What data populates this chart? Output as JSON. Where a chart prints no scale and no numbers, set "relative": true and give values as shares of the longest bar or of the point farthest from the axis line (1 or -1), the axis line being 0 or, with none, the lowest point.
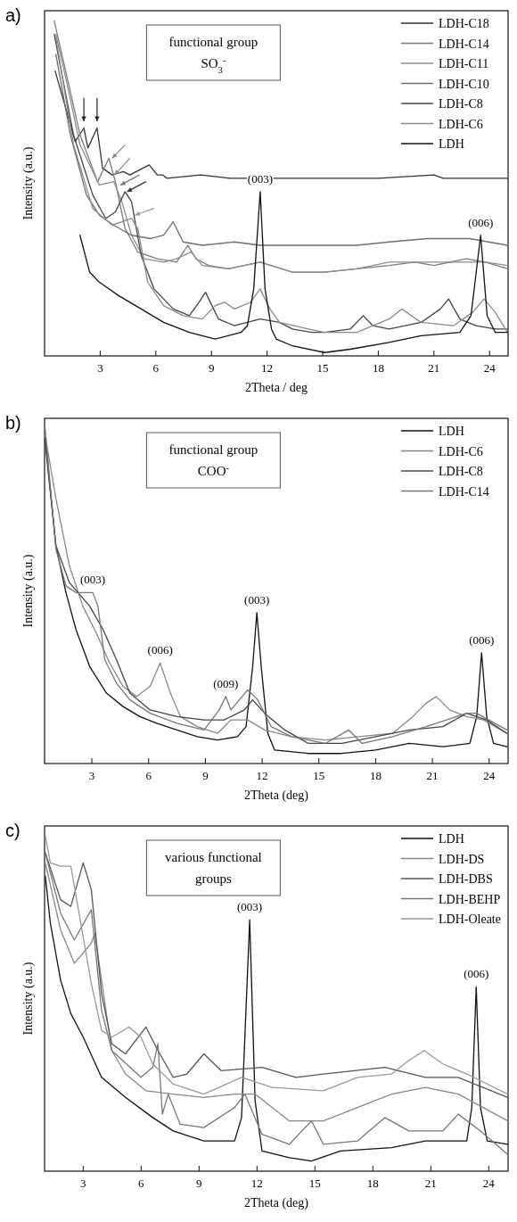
{
  "chart_data": [
    {
      "type": "line",
      "title": "a)",
      "xlabel": "2Theta / deg",
      "ylabel": "Intensity (a.u.)",
      "relative": true,
      "legend": "top right",
      "xlim": [
        0,
        25
      ],
      "xticks": [
        3,
        6,
        9,
        12,
        15,
        18,
        21,
        24
      ],
      "annotations": [
        "functional group",
        "SO$_{3}$$^{-}$",
        {
          "text": "(003)",
          "x": 11.63,
          "y": 0.49
        },
        {
          "text": "(006)",
          "x": 23.52,
          "y": 0.36
        }
      ],
      "series": [
        {
          "name": "LDH-C18",
          "color": "#333333",
          "x": [
            0.57,
            1.65,
            2.12,
            2.34,
            2.83,
            3.13,
            3.65,
            4.25,
            4.6,
            5.64,
            6.08,
            6.37,
            6.6,
            8.42,
            10,
            14,
            18,
            21,
            21.5,
            25
          ],
          "values": [
            0.85,
            0.64,
            0.68,
            0.62,
            0.68,
            0.56,
            0.54,
            0.55,
            0.54,
            0.57,
            0.54,
            0.54,
            0.53,
            0.54,
            0.53,
            0.53,
            0.53,
            0.54,
            0.53,
            0.53
          ]
        },
        {
          "name": "LDH-C14",
          "color": "#7a7a7a",
          "x": [
            0.52,
            1.22,
            1.91,
            2.86,
            3.47,
            3.82,
            4.34,
            5.03,
            6.08,
            7.12,
            7.73,
            8.16,
            8.85,
            9.9,
            11.63,
            13.37,
            15.1,
            16.84,
            18.58,
            19.97,
            21,
            22.74,
            23.78,
            24.97
          ],
          "values": [
            1,
            0.83,
            0.66,
            0.52,
            0.59,
            0.52,
            0.38,
            0.31,
            0.29,
            0.28,
            0.33,
            0.29,
            0.27,
            0.26,
            0.28,
            0.25,
            0.25,
            0.26,
            0.27,
            0.28,
            0.27,
            0.29,
            0.28,
            0.26
          ]
        },
        {
          "name": "LDH-C11",
          "color": "#8c8c8c",
          "x": [
            0.61,
            1.22,
            1.91,
            2.95,
            3.73,
            4.17,
            4.69,
            5.38,
            6.42,
            7.12,
            7.9,
            8.51,
            9.9,
            11.63,
            13.37,
            15.1,
            16.84,
            18.58,
            19.97,
            21.18,
            22.74,
            23.78,
            24.97
          ],
          "values": [
            0.96,
            0.81,
            0.63,
            0.51,
            0.52,
            0.46,
            0.36,
            0.29,
            0.28,
            0.29,
            0.31,
            0.27,
            0.26,
            0.28,
            0.25,
            0.25,
            0.26,
            0.28,
            0.28,
            0.28,
            0.28,
            0.28,
            0.27
          ]
        },
        {
          "name": "LDH-C10",
          "color": "#6e6e6e",
          "x": [
            0.61,
            1.39,
            2.26,
            2.95,
            3.73,
            4.69,
            5.73,
            6.42,
            6.94,
            7.47,
            8.51,
            10.24,
            11.63,
            13.37,
            15.1,
            16.84,
            18.58,
            20.66,
            22.92,
            24.97
          ],
          "values": [
            0.9,
            0.66,
            0.48,
            0.42,
            0.39,
            0.36,
            0.35,
            0.36,
            0.4,
            0.34,
            0.33,
            0.34,
            0.33,
            0.33,
            0.33,
            0.33,
            0.34,
            0.35,
            0.35,
            0.33
          ]
        },
        {
          "name": "LDH-C8",
          "color": "#444444",
          "x": [
            0.52,
            1.56,
            2.6,
            3.3,
            3.82,
            4.34,
            4.69,
            5.21,
            5.9,
            6.94,
            7.81,
            8.33,
            8.68,
            9.03,
            9.38,
            10.24,
            11.63,
            12.67,
            13.37,
            14.41,
            15.1,
            16.49,
            17.19,
            17.71,
            18.58,
            20.31,
            21.35,
            21.79,
            22.4,
            23.26,
            24.31,
            24.97
          ],
          "values": [
            0.96,
            0.66,
            0.48,
            0.41,
            0.43,
            0.49,
            0.46,
            0.3,
            0.2,
            0.14,
            0.12,
            0.16,
            0.19,
            0.15,
            0.11,
            0.09,
            0.11,
            0.1,
            0.08,
            0.07,
            0.07,
            0.08,
            0.12,
            0.09,
            0.08,
            0.1,
            0.14,
            0.17,
            0.11,
            0.09,
            0.08,
            0.08
          ]
        },
        {
          "name": "LDH-C6",
          "color": "#8a8a8a",
          "x": [
            0.61,
            1.56,
            2.6,
            3.65,
            4.69,
            5.03,
            5.56,
            6.42,
            7.47,
            8.51,
            9.2,
            9.72,
            10.24,
            11.11,
            11.63,
            12.15,
            12.67,
            14.24,
            15.1,
            16.84,
            18.58,
            19.27,
            20.31,
            22.05,
            23.09,
            23.7,
            24.31,
            24.97
          ],
          "values": [
            0.95,
            0.63,
            0.44,
            0.39,
            0.41,
            0.38,
            0.22,
            0.15,
            0.12,
            0.11,
            0.15,
            0.16,
            0.14,
            0.16,
            0.2,
            0.14,
            0.1,
            0.08,
            0.07,
            0.07,
            0.11,
            0.14,
            0.1,
            0.09,
            0.13,
            0.17,
            0.13,
            0.07
          ]
        },
        {
          "name": "LDH",
          "color": "#111111",
          "x": [
            1.91,
            2.43,
            2.95,
            3.99,
            5.21,
            6.42,
            7.81,
            9.2,
            10.59,
            10.94,
            11.28,
            11.63,
            11.89,
            12.24,
            12.5,
            13.37,
            15.1,
            16.49,
            18.58,
            20.31,
            22.4,
            23.0,
            23.52,
            23.87,
            24.31,
            24.97
          ],
          "values": [
            0.36,
            0.25,
            0.22,
            0.18,
            0.14,
            0.1,
            0.07,
            0.05,
            0.07,
            0.09,
            0.2,
            0.49,
            0.2,
            0.08,
            0.05,
            0.03,
            0.01,
            0.02,
            0.04,
            0.06,
            0.07,
            0.12,
            0.36,
            0.12,
            0.07,
            0.07
          ]
        }
      ]
    },
    {
      "type": "line",
      "title": "b)",
      "xlabel": "2Theta (deg)",
      "ylabel": "Intensity (a.u.)",
      "relative": true,
      "legend": "top right",
      "xlim": [
        0.5,
        25
      ],
      "xticks": [
        3,
        6,
        9,
        12,
        15,
        18,
        21,
        24
      ],
      "annotations": [
        "functional group",
        "COO$^{-}$",
        {
          "text": "(003)",
          "x": 3.05,
          "y": 0.51
        },
        {
          "text": "(006)",
          "x": 6.61,
          "y": 0.3
        },
        {
          "text": "(009)",
          "x": 10.08,
          "y": 0.2
        },
        {
          "text": "(003)",
          "x": 11.72,
          "y": 0.45
        },
        {
          "text": "(006)",
          "x": 23.6,
          "y": 0.33
        }
      ],
      "series": [
        {
          "name": "LDH",
          "color": "#111111",
          "x": [
            0.53,
            1.1,
            1.63,
            2.16,
            2.88,
            3.77,
            4.65,
            5.54,
            6.43,
            7.5,
            8.57,
            9.64,
            10.7,
            11.15,
            11.5,
            11.72,
            11.95,
            12.3,
            12.66,
            14.44,
            16.2,
            18,
            19.78,
            21.56,
            22.98,
            23.34,
            23.6,
            23.87,
            24.23,
            24.94
          ],
          "values": [
            0.97,
            0.65,
            0.51,
            0.4,
            0.29,
            0.21,
            0.17,
            0.14,
            0.12,
            0.1,
            0.08,
            0.07,
            0.08,
            0.11,
            0.29,
            0.45,
            0.29,
            0.09,
            0.04,
            0.03,
            0.03,
            0.04,
            0.06,
            0.05,
            0.06,
            0.14,
            0.33,
            0.14,
            0.06,
            0.05
          ]
        },
        {
          "name": "LDH-C6",
          "color": "#888888",
          "x": [
            0.53,
            1.1,
            1.81,
            2.52,
            3.23,
            3.94,
            4.65,
            5.37,
            6.08,
            6.61,
            7.15,
            7.68,
            8.57,
            9.64,
            10.35,
            11.24,
            12.13,
            13.55,
            15.33,
            17.11,
            18.89,
            19.96,
            20.67,
            21.2,
            21.91,
            22.8,
            23.7,
            24.94
          ],
          "values": [
            0.98,
            0.79,
            0.59,
            0.47,
            0.39,
            0.3,
            0.23,
            0.2,
            0.23,
            0.3,
            0.21,
            0.14,
            0.11,
            0.09,
            0.13,
            0.13,
            0.1,
            0.08,
            0.07,
            0.08,
            0.09,
            0.14,
            0.18,
            0.2,
            0.16,
            0.14,
            0.13,
            0.09
          ]
        },
        {
          "name": "LDH-C8",
          "color": "#444444",
          "x": [
            0.53,
            1.1,
            1.81,
            2.88,
            3.59,
            4.3,
            5.01,
            6.08,
            7.5,
            8.93,
            9.99,
            11.06,
            11.5,
            12.13,
            13.2,
            14.44,
            16.22,
            18,
            19.78,
            21.56,
            22.8,
            23.87,
            24.94
          ],
          "values": [
            0.96,
            0.65,
            0.54,
            0.47,
            0.4,
            0.31,
            0.21,
            0.16,
            0.14,
            0.13,
            0.13,
            0.16,
            0.19,
            0.15,
            0.1,
            0.06,
            0.06,
            0.08,
            0.1,
            0.11,
            0.15,
            0.13,
            0.09
          ]
        },
        {
          "name": "LDH-C14",
          "color": "#777777",
          "x": [
            0.53,
            1.1,
            1.63,
            2.16,
            3.05,
            3.32,
            3.68,
            4.3,
            5.01,
            6.08,
            7.5,
            8.93,
            9.73,
            10.08,
            10.35,
            11.24,
            11.77,
            12.48,
            13.55,
            15.33,
            16.58,
            17.29,
            18.89,
            20.67,
            22.8,
            23.34,
            24.94
          ],
          "values": [
            1,
            0.64,
            0.53,
            0.51,
            0.51,
            0.47,
            0.31,
            0.24,
            0.19,
            0.15,
            0.12,
            0.1,
            0.16,
            0.2,
            0.16,
            0.22,
            0.19,
            0.11,
            0.08,
            0.06,
            0.1,
            0.06,
            0.08,
            0.11,
            0.15,
            0.15,
            0.1
          ]
        }
      ]
    },
    {
      "type": "line",
      "title": "c)",
      "xlabel": "2Theta (deg)",
      "ylabel": "Intensity (a.u.)",
      "relative": true,
      "legend": "top right",
      "xlim": [
        1,
        25
      ],
      "xticks": [
        3,
        6,
        9,
        12,
        15,
        18,
        21,
        24
      ],
      "annotations": [
        "various functional",
        "groups",
        {
          "text": "(003)",
          "x": 11.62,
          "y": 0.75
        },
        {
          "text": "(006)",
          "x": 23.35,
          "y": 0.55
        }
      ],
      "series": [
        {
          "name": "LDH",
          "color": "#111111",
          "x": [
            1.04,
            1.3,
            1.83,
            2.36,
            3,
            3.95,
            5.19,
            6.6,
            7.66,
            9.25,
            10.84,
            11.2,
            11.62,
            11.9,
            12.26,
            13.67,
            14.82,
            16.32,
            18.97,
            20.72,
            22.86,
            23.12,
            23.35,
            23.57,
            23.92,
            24.98
          ],
          "values": [
            0.88,
            0.74,
            0.57,
            0.47,
            0.4,
            0.28,
            0.22,
            0.16,
            0.12,
            0.09,
            0.09,
            0.16,
            0.75,
            0.21,
            0.06,
            0.04,
            0.03,
            0.06,
            0.07,
            0.09,
            0.09,
            0.19,
            0.55,
            0.19,
            0.09,
            0.08
          ]
        },
        {
          "name": "LDH-DS",
          "color": "#888888",
          "x": [
            1.04,
            1.83,
            2.54,
            3.42,
            3.6,
            3.95,
            4.48,
            5.19,
            6.25,
            7.66,
            9.25,
            10.84,
            11.9,
            13.67,
            15.44,
            17.2,
            18.97,
            20.72,
            22.42,
            24.98
          ],
          "values": [
            0.92,
            0.72,
            0.62,
            0.68,
            0.71,
            0.57,
            0.36,
            0.29,
            0.24,
            0.23,
            0.22,
            0.23,
            0.23,
            0.15,
            0.15,
            0.19,
            0.23,
            0.25,
            0.23,
            0.15
          ]
        },
        {
          "name": "LDH-DBS",
          "color": "#555555",
          "x": [
            1.04,
            1.83,
            2.36,
            3,
            3.42,
            3.95,
            4.48,
            5.19,
            6.25,
            6.87,
            7.66,
            8.37,
            9.25,
            10.14,
            12.26,
            14.02,
            15.44,
            18.62,
            20.72,
            22.42,
            24.98
          ],
          "values": [
            0.95,
            0.81,
            0.79,
            0.92,
            0.84,
            0.53,
            0.38,
            0.35,
            0.43,
            0.36,
            0.28,
            0.29,
            0.35,
            0.3,
            0.31,
            0.28,
            0.29,
            0.31,
            0.28,
            0.28,
            0.22
          ]
        },
        {
          "name": "LDH-BEHP",
          "color": "#777777",
          "x": [
            1.04,
            1.83,
            2.54,
            3.42,
            3.95,
            4.48,
            5.99,
            6.6,
            6.87,
            7.1,
            7.4,
            8.02,
            9.25,
            10.84,
            11.37,
            12.26,
            13.67,
            14.82,
            15.44,
            17.2,
            18.62,
            19.86,
            21.62,
            22.42,
            23.57,
            24.98
          ],
          "values": [
            0.95,
            0.77,
            0.69,
            0.78,
            0.48,
            0.36,
            0.28,
            0.31,
            0.38,
            0.17,
            0.23,
            0.14,
            0.13,
            0.19,
            0.23,
            0.11,
            0.08,
            0.15,
            0.08,
            0.09,
            0.16,
            0.12,
            0.12,
            0.17,
            0.12,
            0.05
          ]
        },
        {
          "name": "LDH-Oleate",
          "color": "#999999",
          "x": [
            1.04,
            1.3,
            1.83,
            2.36,
            3.42,
            3.95,
            4.48,
            5.37,
            5.99,
            6.6,
            7.66,
            9.25,
            11.2,
            12.79,
            15.44,
            17.2,
            18.97,
            19.86,
            20.65,
            21.62,
            22.86,
            24.98
          ],
          "values": [
            1,
            0.92,
            0.91,
            0.91,
            0.56,
            0.42,
            0.4,
            0.43,
            0.4,
            0.32,
            0.26,
            0.23,
            0.28,
            0.25,
            0.24,
            0.28,
            0.29,
            0.33,
            0.36,
            0.32,
            0.29,
            0.23
          ]
        }
      ]
    }
  ]
}
